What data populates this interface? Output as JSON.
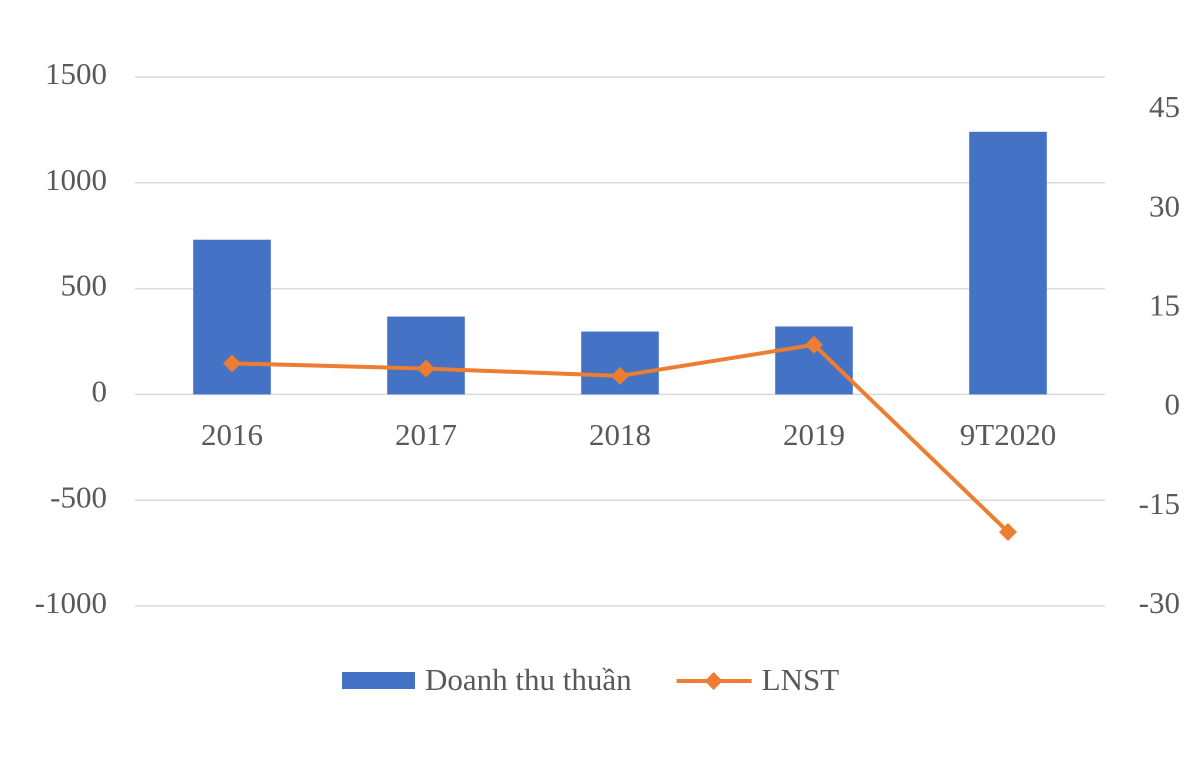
{
  "chart_data": {
    "type": "bar-line",
    "categories": [
      "2016",
      "2017",
      "2018",
      "2019",
      "9T2020"
    ],
    "series": [
      {
        "name": "Doanh thu thuần",
        "type": "bar",
        "color": "#4472c4",
        "values": [
          731,
          368,
          297,
          321,
          1241
        ]
      },
      {
        "name": "LNST",
        "type": "line",
        "axis": "y2",
        "color": "#ed7d31",
        "values": [
          6.7,
          5.9,
          4.8,
          9.5,
          -18.8
        ]
      }
    ],
    "ylim": [
      -1000,
      1500
    ],
    "yticks": [
      -1000,
      -500,
      0,
      500,
      1000,
      1500
    ],
    "y2lim": [
      -30,
      50
    ],
    "y2ticks": [
      -30,
      -15,
      0,
      15,
      30,
      45
    ],
    "grid": true,
    "legend": "bottom"
  }
}
